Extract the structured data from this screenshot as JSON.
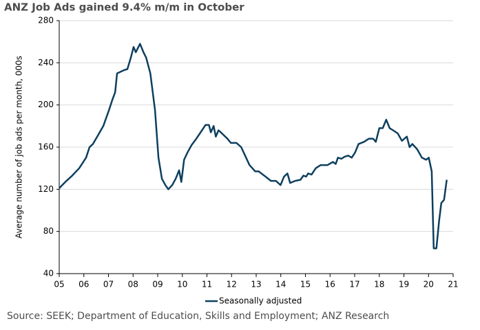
{
  "chart_data": {
    "type": "line",
    "title": "ANZ Job Ads gained 9.4% m/m in October",
    "y_label": "Average number of job ads per month, 000s",
    "source": "Source: SEEK; Department of Education, Skills and Employment; ANZ Research",
    "xlim": [
      2005,
      2021
    ],
    "xticks": [
      {
        "value": 2005,
        "label": "05"
      },
      {
        "value": 2006,
        "label": "06"
      },
      {
        "value": 2007,
        "label": "07"
      },
      {
        "value": 2008,
        "label": "08"
      },
      {
        "value": 2009,
        "label": "09"
      },
      {
        "value": 2010,
        "label": "10"
      },
      {
        "value": 2011,
        "label": "11"
      },
      {
        "value": 2012,
        "label": "12"
      },
      {
        "value": 2013,
        "label": "13"
      },
      {
        "value": 2014,
        "label": "14"
      },
      {
        "value": 2015,
        "label": "15"
      },
      {
        "value": 2016,
        "label": "16"
      },
      {
        "value": 2017,
        "label": "17"
      },
      {
        "value": 2018,
        "label": "18"
      },
      {
        "value": 2019,
        "label": "19"
      },
      {
        "value": 2020,
        "label": "20"
      },
      {
        "value": 2021,
        "label": "21"
      }
    ],
    "ylim": [
      40,
      280
    ],
    "yticks": [
      40,
      80,
      120,
      160,
      200,
      240,
      280
    ],
    "grid": true,
    "x": [
      2005.0,
      2005.25,
      2005.53,
      2005.81,
      2006.09,
      2006.23,
      2006.37,
      2006.57,
      2006.79,
      2007.02,
      2007.16,
      2007.27,
      2007.35,
      2007.63,
      2007.77,
      2007.91,
      2008.02,
      2008.11,
      2008.28,
      2008.42,
      2008.53,
      2008.7,
      2008.89,
      2009.03,
      2009.17,
      2009.31,
      2009.43,
      2009.59,
      2009.73,
      2009.87,
      2009.96,
      2010.07,
      2010.21,
      2010.38,
      2010.57,
      2010.77,
      2010.94,
      2011.08,
      2011.16,
      2011.27,
      2011.36,
      2011.47,
      2011.61,
      2011.83,
      2011.97,
      2012.2,
      2012.39,
      2012.59,
      2012.73,
      2012.96,
      2013.1,
      2013.38,
      2013.6,
      2013.8,
      2013.99,
      2014.13,
      2014.27,
      2014.38,
      2014.58,
      2014.8,
      2014.92,
      2015.03,
      2015.11,
      2015.25,
      2015.42,
      2015.62,
      2015.9,
      2016.12,
      2016.23,
      2016.32,
      2016.46,
      2016.6,
      2016.74,
      2016.88,
      2017.02,
      2017.16,
      2017.38,
      2017.58,
      2017.75,
      2017.86,
      2018.0,
      2018.14,
      2018.28,
      2018.42,
      2018.56,
      2018.75,
      2018.92,
      2019.12,
      2019.23,
      2019.34,
      2019.54,
      2019.73,
      2019.9,
      2020.01,
      2020.13,
      2020.21,
      2020.32,
      2020.43,
      2020.52,
      2020.63,
      2020.74
    ],
    "series": [
      {
        "name": "Seasonally adjusted",
        "color": "#0d3f5e",
        "values": [
          121,
          127,
          133,
          140,
          150,
          160,
          163,
          171,
          180,
          195,
          205,
          212,
          230,
          233,
          234,
          245,
          255,
          250,
          258,
          250,
          245,
          230,
          195,
          150,
          130,
          124,
          120,
          124,
          130,
          138,
          127,
          148,
          155,
          162,
          168,
          175,
          181,
          181,
          174,
          180,
          170,
          176,
          173,
          168,
          164,
          164,
          160,
          150,
          143,
          137,
          137,
          132,
          128,
          128,
          124,
          132,
          135,
          126,
          128,
          129,
          133,
          132,
          135,
          134,
          140,
          143,
          143,
          146,
          144,
          150,
          149,
          151,
          152,
          150,
          155,
          163,
          165,
          168,
          168,
          165,
          178,
          178,
          186,
          178,
          176,
          173,
          166,
          170,
          160,
          163,
          158,
          150,
          148,
          150,
          137,
          64,
          64,
          90,
          107,
          110,
          129
        ]
      }
    ]
  }
}
